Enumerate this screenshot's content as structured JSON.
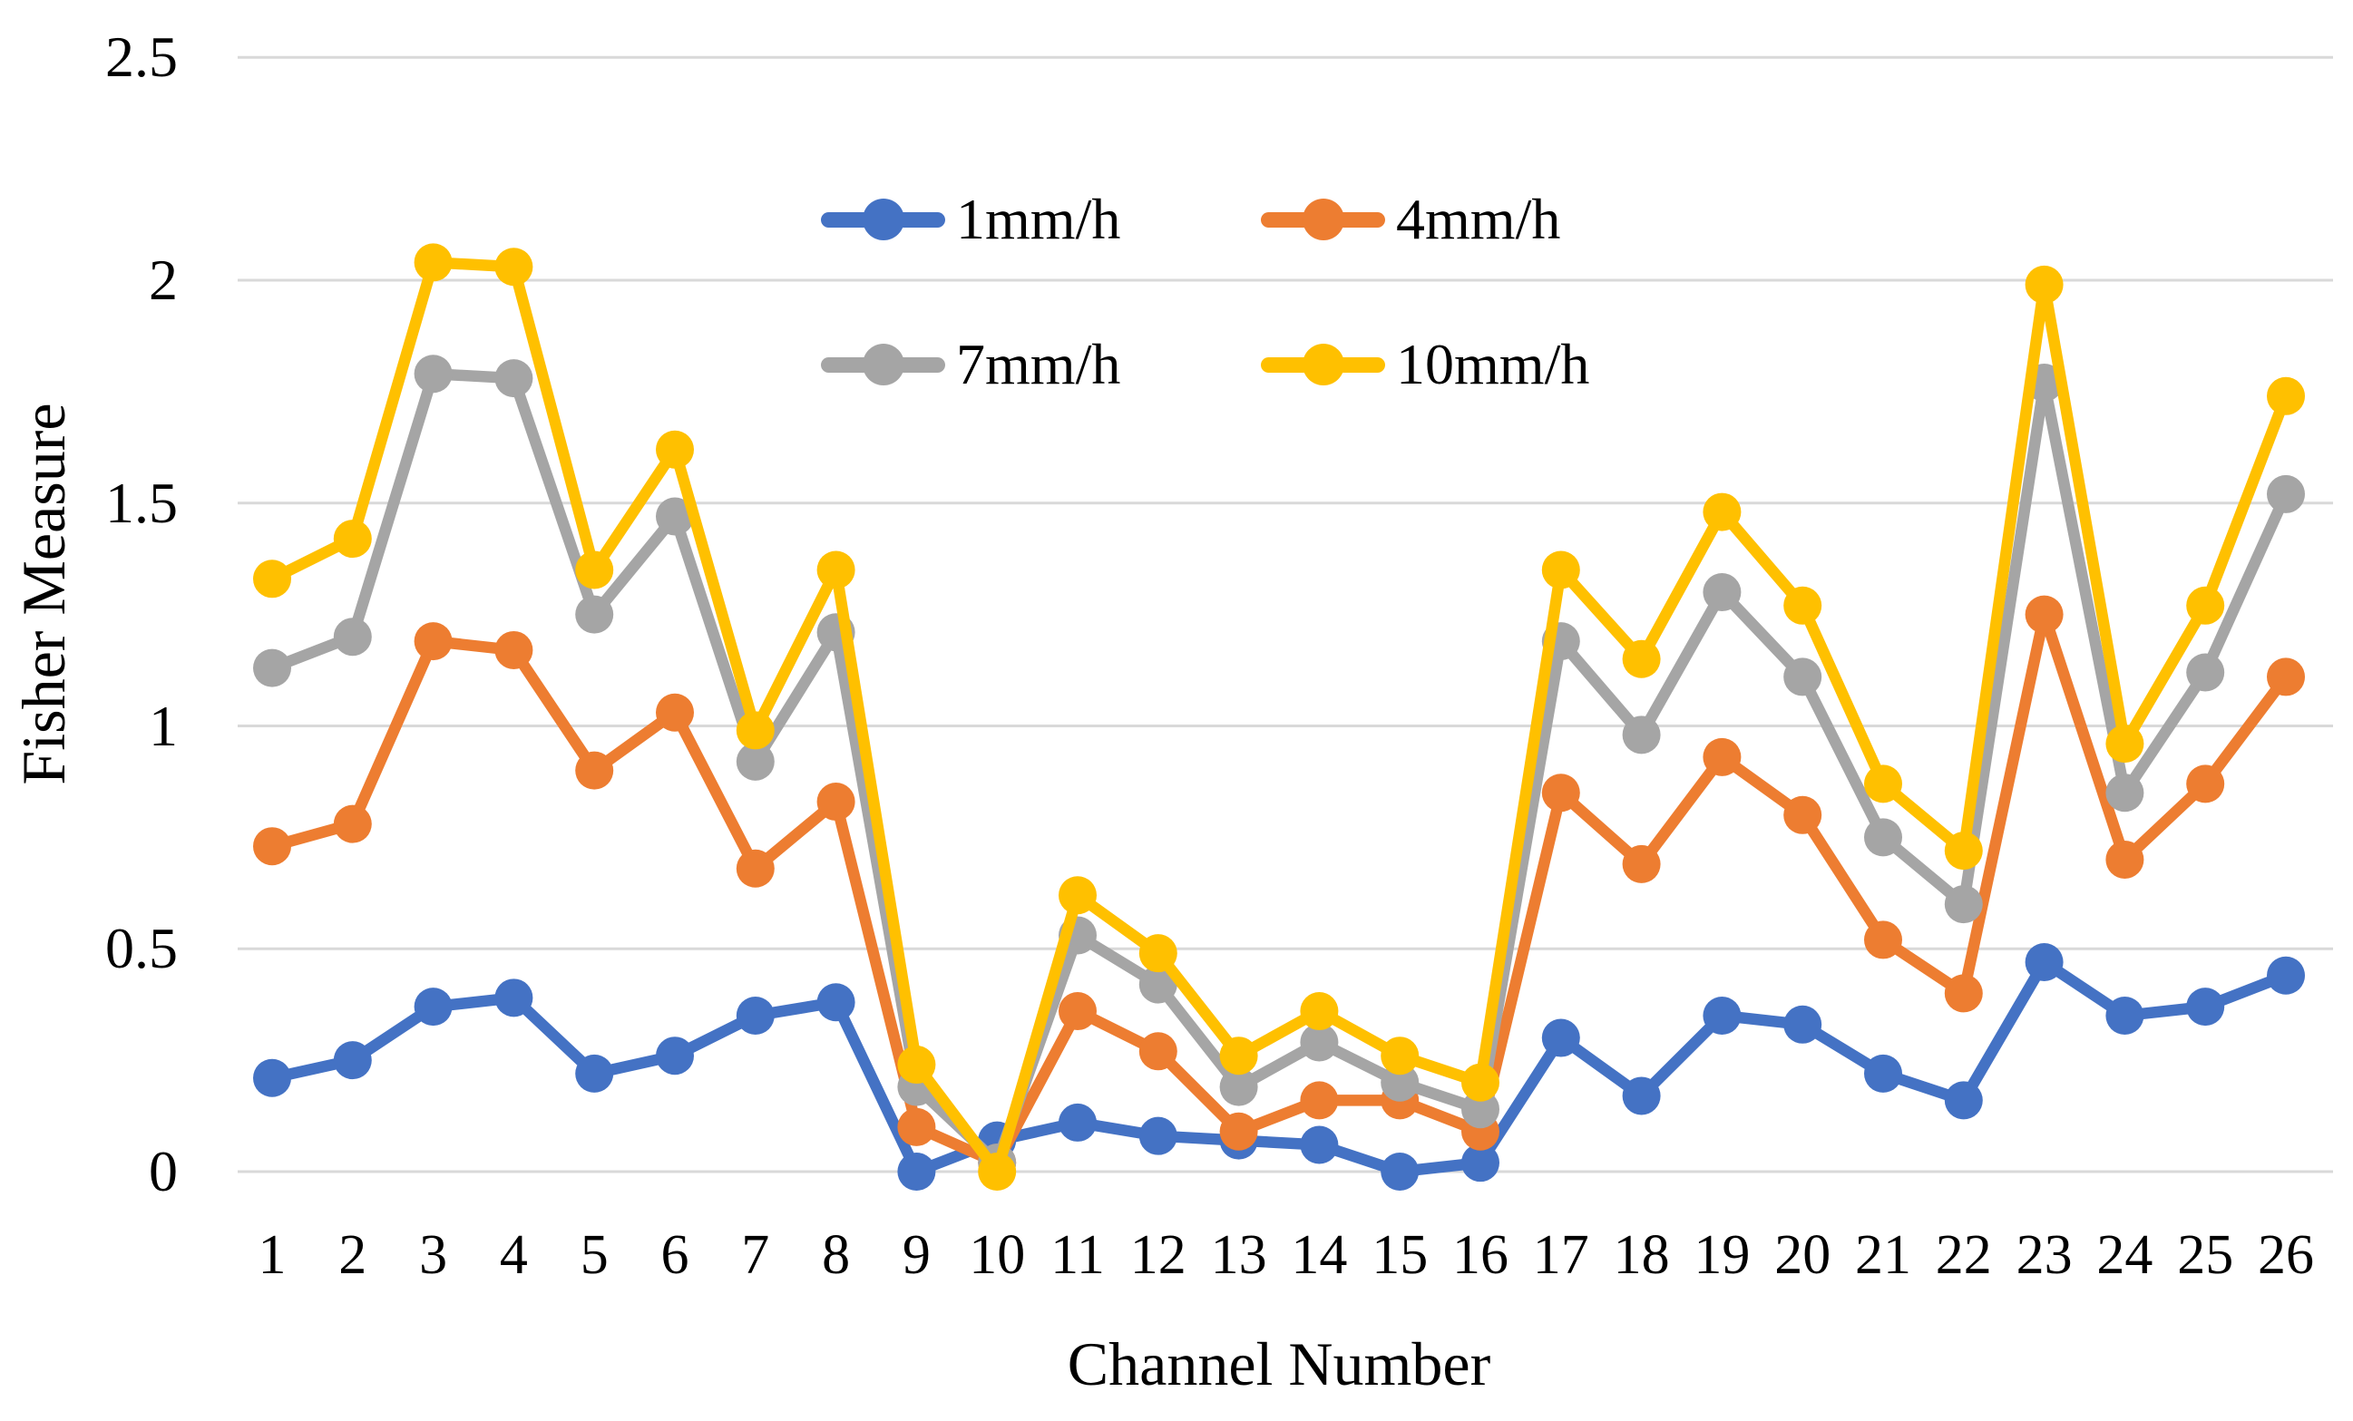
{
  "figure": {
    "background": "#FFFFFF",
    "text_color": "#000000"
  },
  "chart_data": {
    "type": "line",
    "title": "",
    "xlabel": "Channel Number",
    "ylabel": "Fisher Measure",
    "categories": [
      "1",
      "2",
      "3",
      "4",
      "5",
      "6",
      "7",
      "8",
      "9",
      "10",
      "11",
      "12",
      "13",
      "14",
      "15",
      "16",
      "17",
      "18",
      "19",
      "20",
      "21",
      "22",
      "23",
      "24",
      "25",
      "26"
    ],
    "y_ticks": [
      "0",
      "0.5",
      "1",
      "1.5",
      "2",
      "2.5"
    ],
    "y_tick_values": [
      0,
      0.5,
      1,
      1.5,
      2,
      2.5
    ],
    "ylim": [
      0,
      2.5
    ],
    "grid": "horizontal",
    "grid_color": "#D9D9D9",
    "legend_position": "inside-top-center",
    "legend_rows": 2,
    "series": [
      {
        "name": "1mm/h",
        "color": "#4472C4",
        "values": [
          0.21,
          0.25,
          0.37,
          0.39,
          0.22,
          0.26,
          0.35,
          0.38,
          0.0,
          0.07,
          0.11,
          0.08,
          0.07,
          0.06,
          0.0,
          0.02,
          0.3,
          0.17,
          0.35,
          0.33,
          0.22,
          0.16,
          0.47,
          0.35,
          0.37,
          0.44
        ]
      },
      {
        "name": "4mm/h",
        "color": "#ED7D31",
        "values": [
          0.73,
          0.78,
          1.19,
          1.17,
          0.9,
          1.03,
          0.68,
          0.83,
          0.1,
          0.02,
          0.36,
          0.27,
          0.09,
          0.16,
          0.16,
          0.09,
          0.85,
          0.69,
          0.93,
          0.8,
          0.52,
          0.4,
          1.25,
          0.7,
          0.87,
          1.11
        ]
      },
      {
        "name": "7mm/h",
        "color": "#A5A5A5",
        "values": [
          1.13,
          1.2,
          1.79,
          1.78,
          1.25,
          1.47,
          0.92,
          1.21,
          0.19,
          0.02,
          0.53,
          0.42,
          0.19,
          0.29,
          0.2,
          0.14,
          1.19,
          0.98,
          1.3,
          1.11,
          0.75,
          0.6,
          1.77,
          0.85,
          1.12,
          1.52
        ]
      },
      {
        "name": "10mm/h",
        "color": "#FFC000",
        "values": [
          1.33,
          1.42,
          2.04,
          2.03,
          1.35,
          1.62,
          0.99,
          1.35,
          0.24,
          0.0,
          0.62,
          0.49,
          0.26,
          0.36,
          0.26,
          0.2,
          1.35,
          1.15,
          1.48,
          1.27,
          0.87,
          0.72,
          1.99,
          0.96,
          1.27,
          1.74
        ]
      }
    ]
  }
}
